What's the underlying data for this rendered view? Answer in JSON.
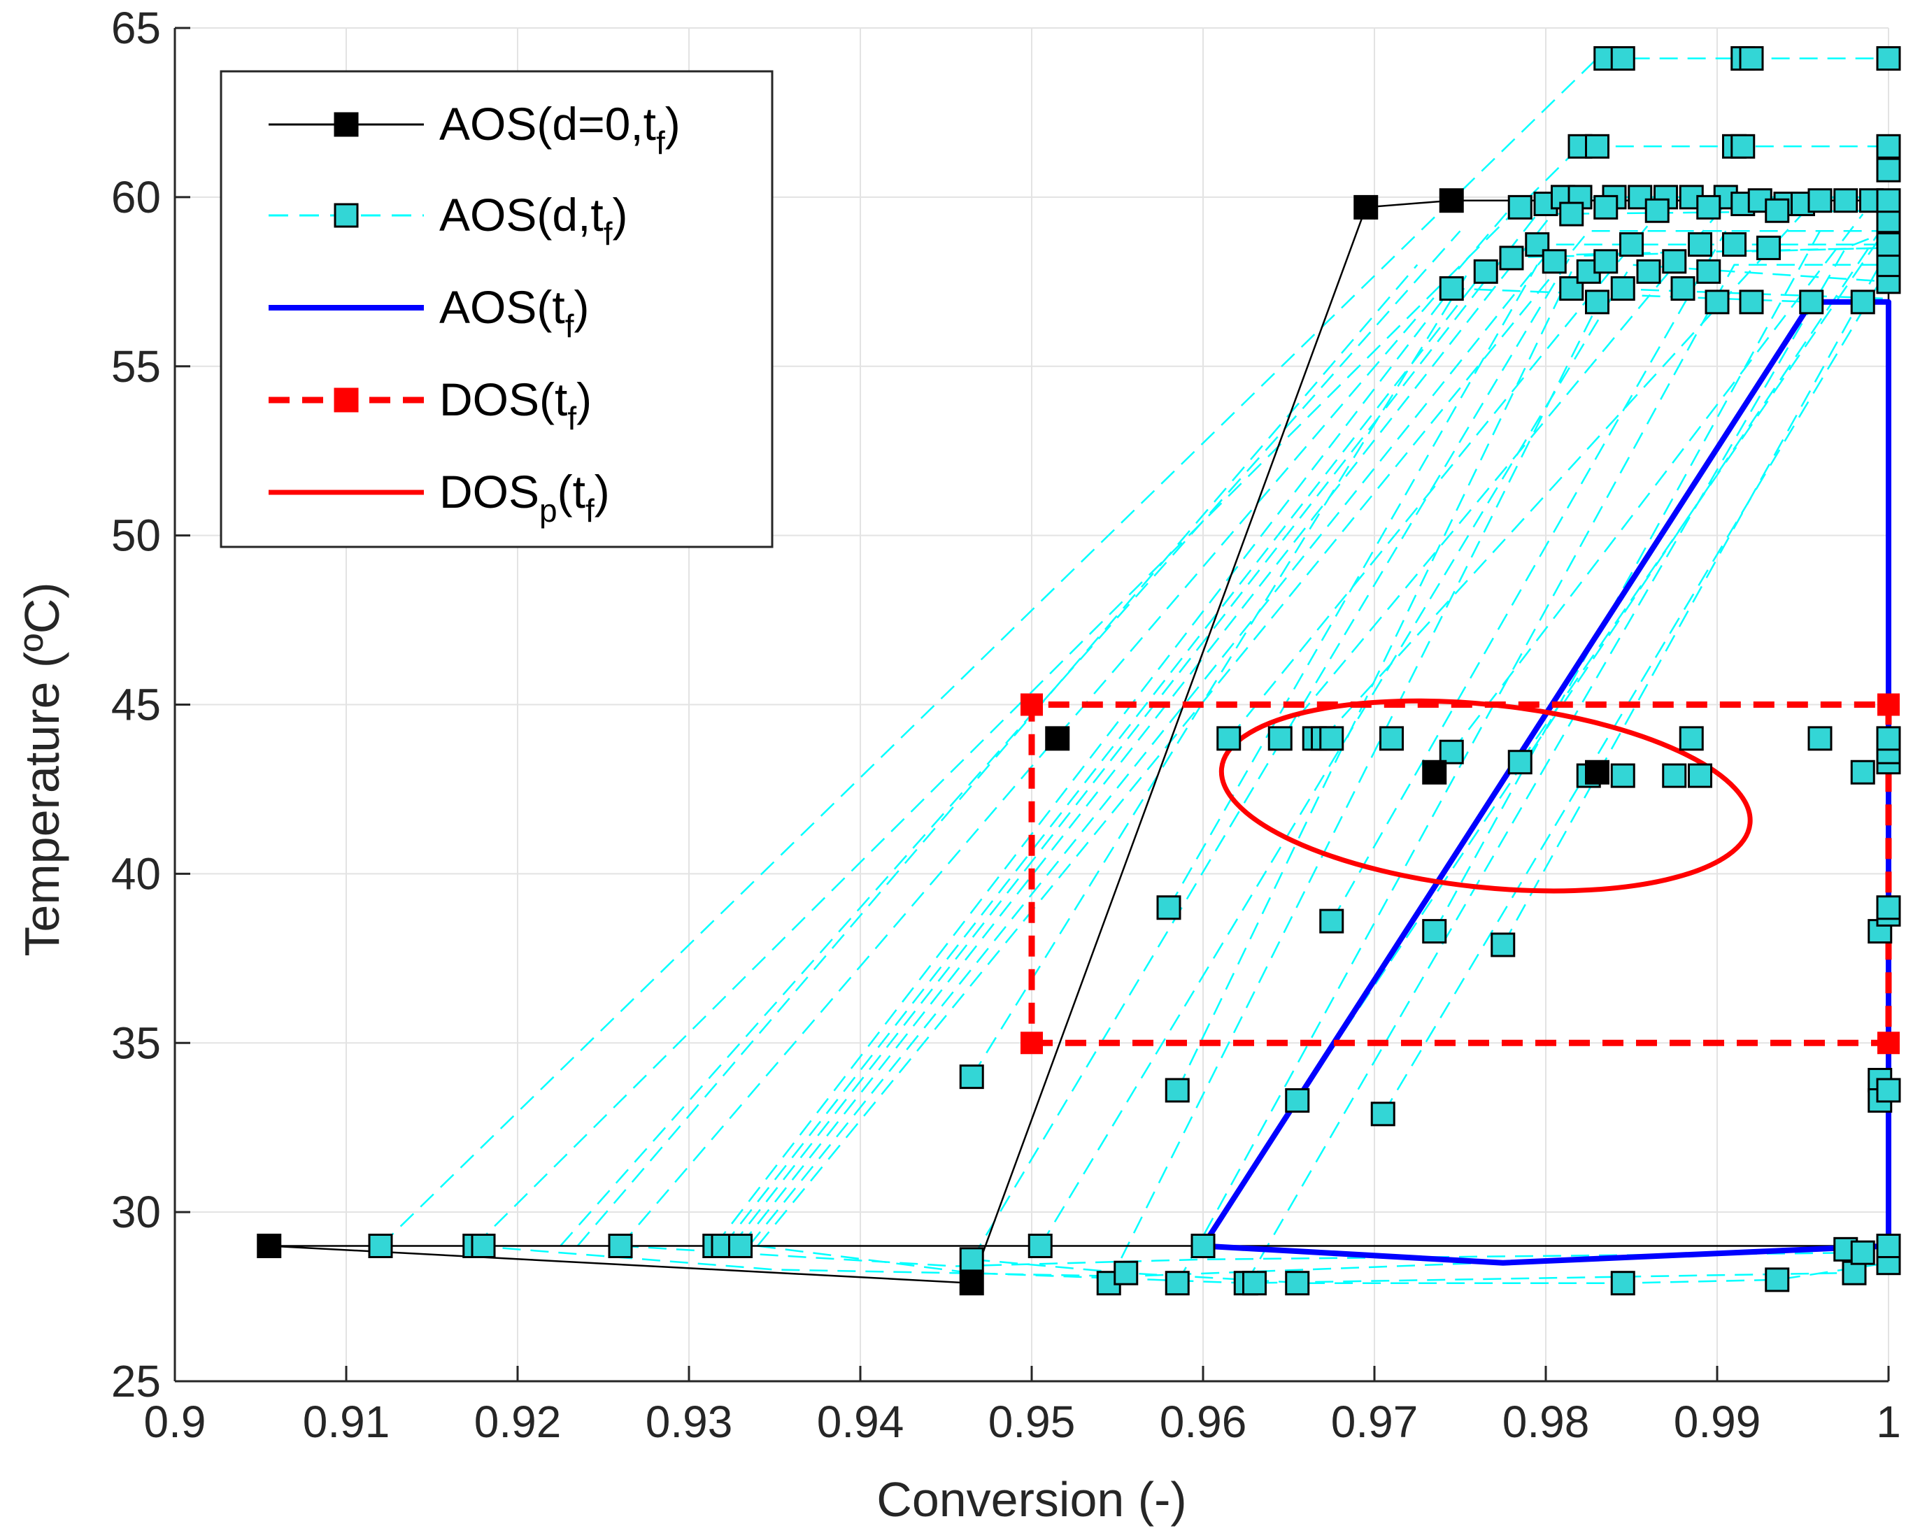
{
  "chart_data": {
    "type": "scatter",
    "xlabel": "Conversion (-)",
    "ylabel": "Temperature (ºC)",
    "xlim": [
      0.9,
      1.0
    ],
    "ylim": [
      25,
      65
    ],
    "xticks": [
      0.9,
      0.91,
      0.92,
      0.93,
      0.94,
      0.95,
      0.96,
      0.97,
      0.98,
      0.99,
      1
    ],
    "xtick_labels": [
      "0.9",
      "0.91",
      "0.92",
      "0.93",
      "0.94",
      "0.95",
      "0.96",
      "0.97",
      "0.98",
      "0.99",
      "1"
    ],
    "yticks": [
      25,
      30,
      35,
      40,
      45,
      50,
      55,
      60,
      65
    ],
    "ytick_labels": [
      "25",
      "30",
      "35",
      "40",
      "45",
      "50",
      "55",
      "60",
      "65"
    ],
    "grid": true,
    "legend_position": "top-left",
    "legend": [
      {
        "id": "aos-d0",
        "base": "AOS(d=0,t",
        "sub": "f",
        "tail": ")"
      },
      {
        "id": "aos-d",
        "base": "AOS(d,t",
        "sub": "f",
        "tail": ")"
      },
      {
        "id": "aos",
        "base": "AOS(t",
        "sub": "f",
        "tail": ")"
      },
      {
        "id": "dos",
        "base": "DOS(t",
        "sub": "f",
        "tail": ")"
      },
      {
        "id": "dosp",
        "base": "DOS",
        "sub": "p",
        "mid": "(t",
        "sub2": "f",
        "tail": ")"
      }
    ],
    "colors": {
      "aos_d0": "#000000",
      "aos_d": "#00ffff",
      "aos_d_marker": "#33d6d6",
      "aos": "#0000ff",
      "dos": "#ff0000",
      "grid": "#e3e3e3",
      "axis": "#262626"
    },
    "aos_d0_polygon": [
      [
        0.9055,
        29.0
      ],
      [
        0.9465,
        27.9
      ],
      [
        0.9695,
        59.7
      ],
      [
        0.9745,
        59.9
      ],
      [
        1.0,
        59.9
      ],
      [
        1.0,
        29.0
      ]
    ],
    "aos_d0_points": [
      [
        0.9055,
        29.0
      ],
      [
        0.9465,
        27.9
      ],
      [
        0.9695,
        59.7
      ],
      [
        0.9745,
        59.9
      ],
      [
        0.9515,
        44.0
      ],
      [
        0.9735,
        43.0
      ],
      [
        0.983,
        43.0
      ]
    ],
    "aos_tf_polygon": [
      [
        0.96,
        29.0
      ],
      [
        0.9775,
        28.5
      ],
      [
        1.0,
        29.0
      ],
      [
        1.0,
        56.9
      ],
      [
        0.9955,
        56.9
      ],
      [
        0.96,
        29.0
      ]
    ],
    "dos_tf_box": {
      "x": [
        0.95,
        1.0
      ],
      "y": [
        35,
        45
      ]
    },
    "dosp_ellipse": {
      "center": [
        0.9765,
        42.3
      ],
      "semi_axis_x": 0.0155,
      "semi_axis_y": 2.7
    },
    "aos_d_lines": [
      [
        [
          0.912,
          29.0
        ],
        [
          0.983,
          64.1
        ],
        [
          1.0,
          64.1
        ]
      ],
      [
        [
          0.9175,
          29.0
        ],
        [
          0.982,
          61.5
        ],
        [
          1.0,
          61.5
        ]
      ],
      [
        [
          0.926,
          29.0
        ],
        [
          0.9785,
          60.0
        ],
        [
          1.0,
          60.0
        ]
      ],
      [
        [
          0.9315,
          29.0
        ],
        [
          0.9745,
          57.3
        ],
        [
          0.9955,
          56.9
        ]
      ],
      [
        [
          0.932,
          29.0
        ],
        [
          0.977,
          58.2
        ],
        [
          1.0,
          58.5
        ]
      ],
      [
        [
          0.9325,
          29.0
        ],
        [
          0.9795,
          59.5
        ],
        [
          1.0,
          59.6
        ]
      ],
      [
        [
          0.933,
          29.0
        ],
        [
          0.981,
          59.9
        ],
        [
          1.0,
          60.0
        ]
      ],
      [
        [
          0.9335,
          29.0
        ],
        [
          0.9805,
          58.6
        ],
        [
          1.0,
          58.6
        ]
      ],
      [
        [
          0.934,
          29.0
        ],
        [
          0.9825,
          59.0
        ],
        [
          1.0,
          59.0
        ]
      ],
      [
        [
          0.9465,
          28.6
        ],
        [
          0.9815,
          58.3
        ],
        [
          1.0,
          58.5
        ]
      ],
      [
        [
          0.9505,
          29.0
        ],
        [
          0.985,
          58.0
        ],
        [
          1.0,
          57.5
        ]
      ],
      [
        [
          0.9545,
          27.9
        ],
        [
          0.9835,
          57.3
        ],
        [
          1.0,
          57.0
        ]
      ],
      [
        [
          0.9585,
          27.9
        ],
        [
          0.991,
          58.0
        ],
        [
          1.0,
          58.0
        ]
      ],
      [
        [
          0.9625,
          27.9
        ],
        [
          0.9975,
          58.5
        ],
        [
          1.0,
          59.0
        ]
      ],
      [
        [
          0.9655,
          33.3
        ],
        [
          0.9995,
          59.0
        ]
      ],
      [
        [
          0.9705,
          32.9
        ],
        [
          0.9995,
          57.5
        ]
      ],
      [
        [
          0.9465,
          34.0
        ],
        [
          0.9755,
          57.8
        ]
      ],
      [
        [
          0.958,
          39.0
        ],
        [
          0.9795,
          58.0
        ]
      ],
      [
        [
          0.9585,
          33.6
        ],
        [
          0.9815,
          57.8
        ]
      ],
      [
        [
          0.9675,
          38.6
        ],
        [
          0.9905,
          59.0
        ]
      ],
      [
        [
          0.9735,
          38.3
        ],
        [
          0.996,
          59.0
        ]
      ],
      [
        [
          0.9775,
          37.9
        ],
        [
          0.9995,
          58.0
        ]
      ],
      [
        [
          0.9615,
          44.0
        ],
        [
          0.9865,
          59.5
        ]
      ],
      [
        [
          0.9645,
          44.0
        ],
        [
          0.9905,
          59.8
        ]
      ],
      [
        [
          0.967,
          44.0
        ],
        [
          0.9955,
          59.8
        ]
      ],
      [
        [
          0.9745,
          43.6
        ],
        [
          0.9985,
          59.5
        ]
      ],
      [
        [
          0.9785,
          43.3
        ],
        [
          0.9995,
          58.8
        ]
      ],
      [
        [
          0.9235,
          29.0
        ],
        [
          0.9725,
          58.0
        ]
      ],
      [
        [
          0.9225,
          29.0
        ],
        [
          0.975,
          59.0
        ]
      ],
      [
        [
          0.9465,
          28.6
        ],
        [
          0.9555,
          28.2
        ],
        [
          0.966,
          27.9
        ],
        [
          0.9845,
          27.9
        ],
        [
          0.9935,
          28.0
        ],
        [
          1.0,
          28.5
        ]
      ],
      [
        [
          0.9175,
          29.0
        ],
        [
          0.935,
          28.3
        ],
        [
          0.9555,
          28.1
        ],
        [
          0.9975,
          28.9
        ]
      ],
      [
        [
          0.926,
          29.0
        ],
        [
          0.9455,
          28.4
        ],
        [
          0.96,
          28.6
        ],
        [
          0.9985,
          28.8
        ]
      ],
      [
        [
          0.934,
          29.0
        ],
        [
          0.9465,
          28.2
        ],
        [
          0.9625,
          27.9
        ],
        [
          0.9975,
          28.2
        ]
      ]
    ],
    "aos_d_points": [
      [
        0.912,
        29.0
      ],
      [
        0.9175,
        29.0
      ],
      [
        0.918,
        29.0
      ],
      [
        0.926,
        29.0
      ],
      [
        0.9315,
        29.0
      ],
      [
        0.932,
        29.0
      ],
      [
        0.933,
        29.0
      ],
      [
        0.9465,
        28.6
      ],
      [
        0.9505,
        29.0
      ],
      [
        0.9545,
        27.9
      ],
      [
        0.9555,
        28.2
      ],
      [
        0.9585,
        27.9
      ],
      [
        0.96,
        29.0
      ],
      [
        0.9625,
        27.9
      ],
      [
        0.963,
        27.9
      ],
      [
        0.9655,
        27.9
      ],
      [
        0.9845,
        27.9
      ],
      [
        0.9935,
        28.0
      ],
      [
        0.9975,
        28.9
      ],
      [
        0.998,
        28.2
      ],
      [
        0.9985,
        28.8
      ],
      [
        1.0,
        28.5
      ],
      [
        1.0,
        29.0
      ],
      [
        0.9465,
        34.0
      ],
      [
        0.958,
        39.0
      ],
      [
        0.9585,
        33.6
      ],
      [
        0.9655,
        33.3
      ],
      [
        0.9675,
        38.6
      ],
      [
        0.9705,
        32.9
      ],
      [
        0.9735,
        38.3
      ],
      [
        0.9775,
        37.9
      ],
      [
        0.9995,
        33.9
      ],
      [
        0.9995,
        33.3
      ],
      [
        1.0,
        33.6
      ],
      [
        0.9995,
        38.3
      ],
      [
        1.0,
        38.8
      ],
      [
        1.0,
        39.0
      ],
      [
        0.9615,
        44.0
      ],
      [
        0.9645,
        44.0
      ],
      [
        0.9665,
        44.0
      ],
      [
        0.967,
        44.0
      ],
      [
        0.9675,
        44.0
      ],
      [
        0.971,
        44.0
      ],
      [
        0.9745,
        43.6
      ],
      [
        0.9785,
        43.3
      ],
      [
        0.9825,
        42.9
      ],
      [
        0.9845,
        42.9
      ],
      [
        0.9875,
        42.9
      ],
      [
        0.989,
        42.9
      ],
      [
        0.9885,
        44.0
      ],
      [
        0.996,
        44.0
      ],
      [
        0.9985,
        43.0
      ],
      [
        1.0,
        43.3
      ],
      [
        1.0,
        43.6
      ],
      [
        1.0,
        44.0
      ],
      [
        0.9835,
        64.1
      ],
      [
        0.9845,
        64.1
      ],
      [
        0.9915,
        64.1
      ],
      [
        0.992,
        64.1
      ],
      [
        1.0,
        64.1
      ],
      [
        0.982,
        61.5
      ],
      [
        0.983,
        61.5
      ],
      [
        0.991,
        61.5
      ],
      [
        0.9915,
        61.5
      ],
      [
        1.0,
        61.5
      ],
      [
        1.0,
        60.8
      ],
      [
        0.9745,
        57.3
      ],
      [
        0.9765,
        57.8
      ],
      [
        0.978,
        58.2
      ],
      [
        0.9785,
        59.7
      ],
      [
        0.9795,
        58.6
      ],
      [
        0.98,
        59.8
      ],
      [
        0.9805,
        58.1
      ],
      [
        0.981,
        60.0
      ],
      [
        0.9815,
        57.3
      ],
      [
        0.982,
        60.0
      ],
      [
        0.9825,
        57.8
      ],
      [
        0.983,
        56.9
      ],
      [
        0.9835,
        58.1
      ],
      [
        0.984,
        60.0
      ],
      [
        0.9845,
        57.3
      ],
      [
        0.985,
        58.6
      ],
      [
        0.9855,
        60.0
      ],
      [
        0.986,
        57.8
      ],
      [
        0.987,
        60.0
      ],
      [
        0.9875,
        58.1
      ],
      [
        0.988,
        57.3
      ],
      [
        0.9885,
        60.0
      ],
      [
        0.989,
        58.6
      ],
      [
        0.9895,
        57.8
      ],
      [
        0.99,
        56.9
      ],
      [
        0.9905,
        60.0
      ],
      [
        0.991,
        58.6
      ],
      [
        0.9915,
        59.8
      ],
      [
        0.992,
        56.9
      ],
      [
        0.9925,
        59.9
      ],
      [
        0.993,
        58.5
      ],
      [
        0.994,
        59.8
      ],
      [
        0.995,
        59.8
      ],
      [
        0.9955,
        56.9
      ],
      [
        0.996,
        59.9
      ],
      [
        0.9975,
        59.9
      ],
      [
        0.9985,
        56.9
      ],
      [
        0.999,
        59.9
      ],
      [
        1.0,
        57.5
      ],
      [
        1.0,
        58.0
      ],
      [
        1.0,
        58.6
      ],
      [
        1.0,
        59.3
      ],
      [
        1.0,
        59.9
      ],
      [
        0.9815,
        59.5
      ],
      [
        0.9835,
        59.7
      ],
      [
        0.9865,
        59.6
      ],
      [
        0.9895,
        59.7
      ],
      [
        0.9935,
        59.6
      ]
    ]
  }
}
